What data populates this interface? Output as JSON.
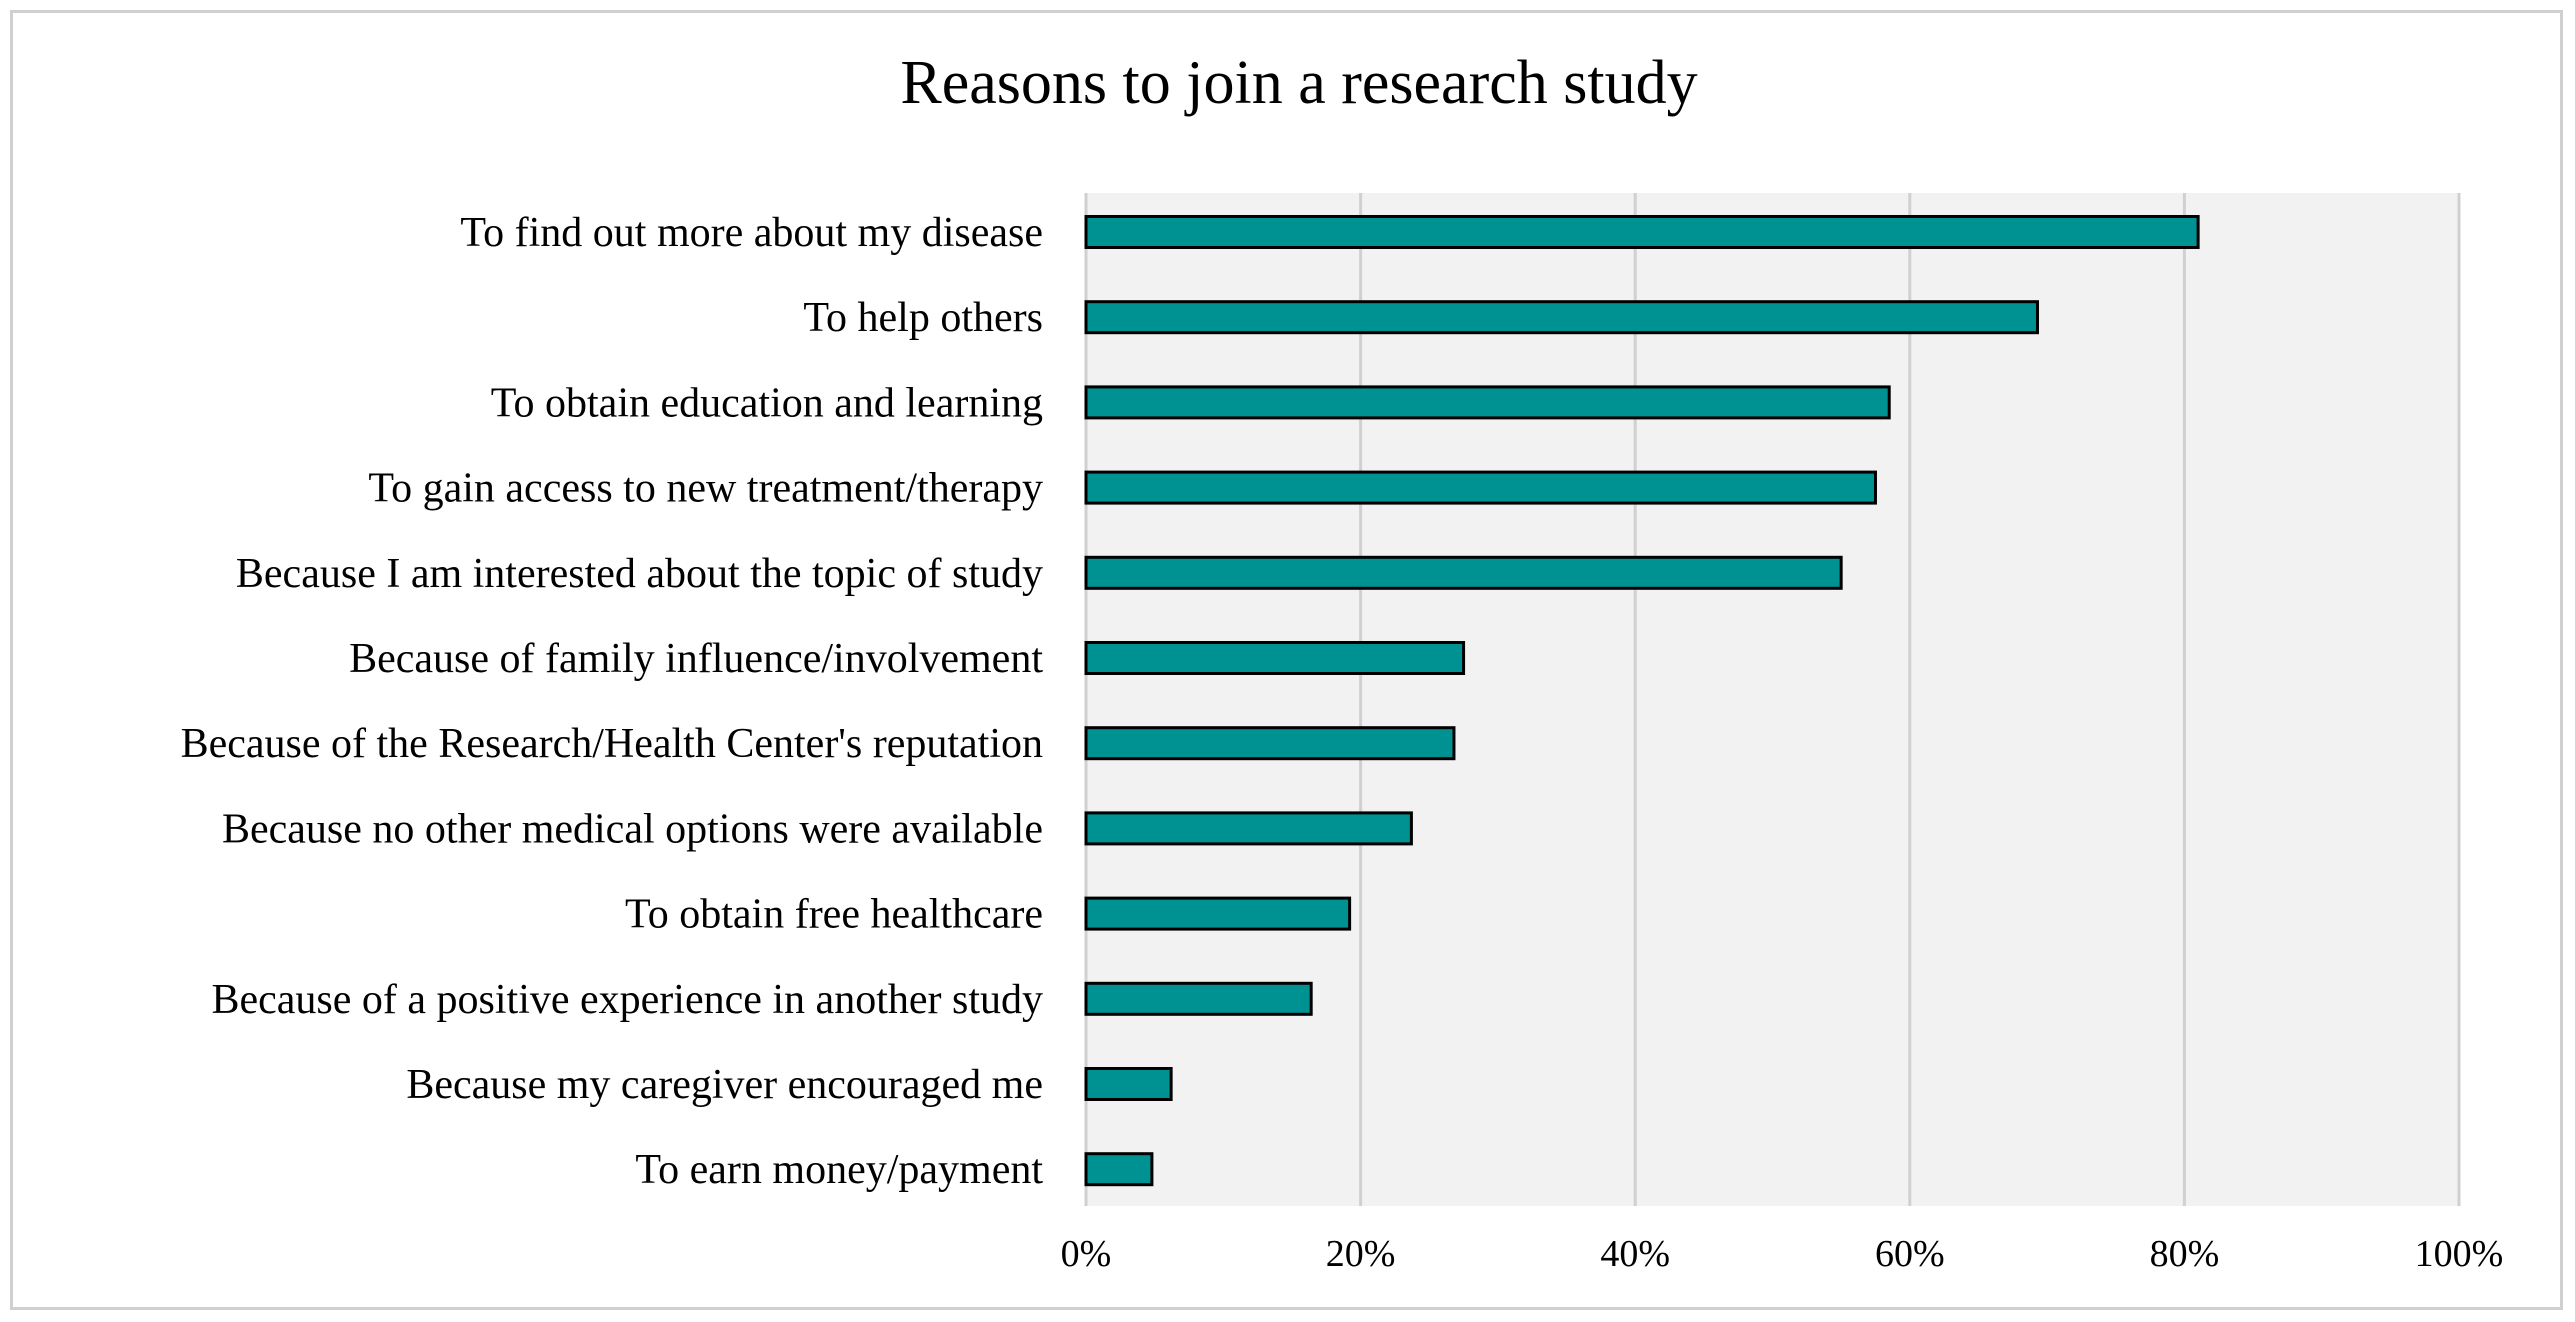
{
  "chart_data": {
    "type": "bar",
    "orientation": "horizontal",
    "title": "Reasons to join a research study",
    "xlabel": "",
    "ylabel": "",
    "xlim": [
      0,
      100
    ],
    "grid": true,
    "legend": "none",
    "categories": [
      "To find out more about my disease",
      "To help others",
      "To obtain education and learning",
      "To gain access to new treatment/therapy",
      "Because I am interested about the topic of study",
      "Because of family influence/involvement",
      "Because of the Research/Health Center's reputation",
      "Because no other medical options were available",
      "To obtain free healthcare",
      "Because of a positive experience in another study",
      "Because my caregiver encouraged me",
      "To earn money/payment"
    ],
    "values": [
      81,
      69.3,
      58.5,
      57.5,
      55,
      27.5,
      26.8,
      23.7,
      19.2,
      16.4,
      6.2,
      4.8
    ],
    "x_ticks": [
      0,
      20,
      40,
      60,
      80,
      100
    ],
    "x_tick_labels": [
      "0%",
      "20%",
      "40%",
      "60%",
      "80%",
      "100%"
    ],
    "colors": {
      "bar_fill": "#009193",
      "bar_stroke": "#000000",
      "plot_background": "#f2f2f2",
      "gridline": "#d0d0d0"
    }
  }
}
